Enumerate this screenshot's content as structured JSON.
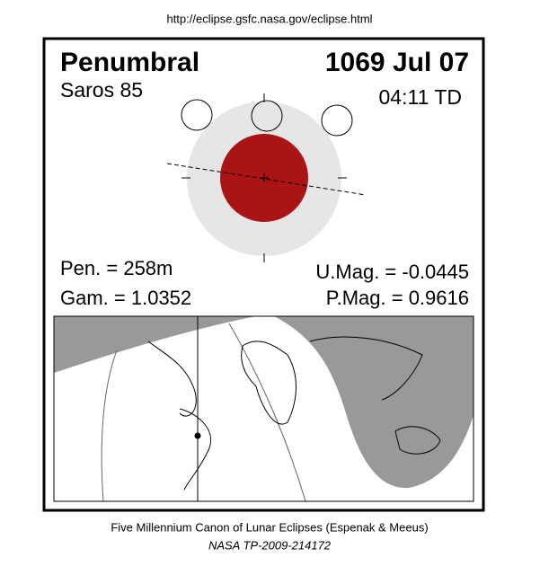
{
  "header": {
    "url": "http://eclipse.gsfc.nasa.gov/eclipse.html"
  },
  "eclipse": {
    "type": "Penumbral",
    "date": "1069 Jul 07",
    "saros": "Saros  85",
    "time": "04:11 TD",
    "pen": "Pen. = 258m",
    "gam": "Gam. = 1.0352",
    "umag": "U.Mag. = -0.0445",
    "pmag": "P.Mag. = 0.9616"
  },
  "footer": {
    "line1": "Five Millennium Canon of Lunar Eclipses (Espenak & Meeus)",
    "line2": "NASA TP-2009-214172"
  }
}
